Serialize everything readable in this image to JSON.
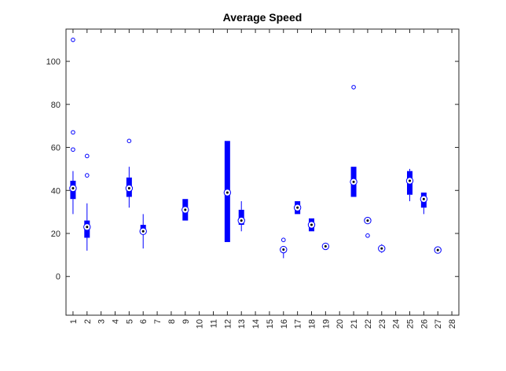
{
  "chart_data": {
    "type": "boxplot",
    "title": "Average Speed",
    "xlabel": "",
    "ylabel": "",
    "categories": [
      "1",
      "2",
      "3",
      "4",
      "5",
      "6",
      "7",
      "8",
      "9",
      "10",
      "11",
      "12",
      "13",
      "14",
      "15",
      "16",
      "17",
      "18",
      "19",
      "20",
      "21",
      "22",
      "23",
      "24",
      "25",
      "26",
      "27",
      "28"
    ],
    "xlim": [
      0.5,
      28.5
    ],
    "ylim": [
      -18,
      115
    ],
    "yticks": [
      0,
      20,
      40,
      60,
      80,
      100
    ],
    "grid": false,
    "legend": "none",
    "colors": {
      "box": "#0000ff",
      "whisker": "#0000ff",
      "median_marker": "#000000",
      "outlier": "#0000ff",
      "axis": "#262626"
    },
    "boxes": [
      {
        "category": "1",
        "q1": 36,
        "q3": 44.5,
        "median": 41,
        "whisker_low": 29,
        "whisker_high": 49,
        "outliers": [
          59,
          67,
          110
        ]
      },
      {
        "category": "2",
        "q1": 18,
        "q3": 26,
        "median": 23,
        "whisker_low": 12,
        "whisker_high": 34,
        "outliers": [
          47,
          56
        ]
      },
      {
        "category": "5",
        "q1": 37,
        "q3": 46,
        "median": 41,
        "whisker_low": 32,
        "whisker_high": 51,
        "outliers": [
          63
        ]
      },
      {
        "category": "6",
        "q1": 20,
        "q3": 24,
        "median": 21,
        "whisker_low": 13,
        "whisker_high": 29,
        "outliers": []
      },
      {
        "category": "9",
        "q1": 26,
        "q3": 36,
        "median": 31,
        "whisker_low": 26,
        "whisker_high": 36,
        "outliers": []
      },
      {
        "category": "12",
        "q1": 16,
        "q3": 63,
        "median": 39,
        "whisker_low": 16,
        "whisker_high": 63,
        "outliers": []
      },
      {
        "category": "13",
        "q1": 24,
        "q3": 31,
        "median": 26,
        "whisker_low": 21,
        "whisker_high": 35,
        "outliers": []
      },
      {
        "category": "16",
        "q1": 12,
        "q3": 13,
        "median": 12.5,
        "whisker_low": 8.5,
        "whisker_high": 13.5,
        "outliers": [
          17
        ]
      },
      {
        "category": "17",
        "q1": 29,
        "q3": 35,
        "median": 32,
        "whisker_low": 29,
        "whisker_high": 35,
        "outliers": []
      },
      {
        "category": "18",
        "q1": 21,
        "q3": 27,
        "median": 24,
        "whisker_low": 21,
        "whisker_high": 27,
        "outliers": []
      },
      {
        "category": "19",
        "q1": 13.5,
        "q3": 14.5,
        "median": 14,
        "whisker_low": 13.5,
        "whisker_high": 14.5,
        "outliers": []
      },
      {
        "category": "21",
        "q1": 37,
        "q3": 51,
        "median": 44,
        "whisker_low": 37,
        "whisker_high": 51,
        "outliers": [
          88
        ]
      },
      {
        "category": "22",
        "q1": 25.5,
        "q3": 27,
        "median": 26,
        "whisker_low": 25.5,
        "whisker_high": 27,
        "outliers": [
          19
        ]
      },
      {
        "category": "23",
        "q1": 12,
        "q3": 14,
        "median": 13,
        "whisker_low": 11,
        "whisker_high": 15,
        "outliers": []
      },
      {
        "category": "25",
        "q1": 38,
        "q3": 49,
        "median": 44.5,
        "whisker_low": 35,
        "whisker_high": 50,
        "outliers": []
      },
      {
        "category": "26",
        "q1": 32,
        "q3": 39,
        "median": 36,
        "whisker_low": 29,
        "whisker_high": 39,
        "outliers": []
      },
      {
        "category": "27",
        "q1": 12,
        "q3": 12.5,
        "median": 12.3,
        "whisker_low": 12,
        "whisker_high": 12.5,
        "outliers": []
      }
    ]
  }
}
